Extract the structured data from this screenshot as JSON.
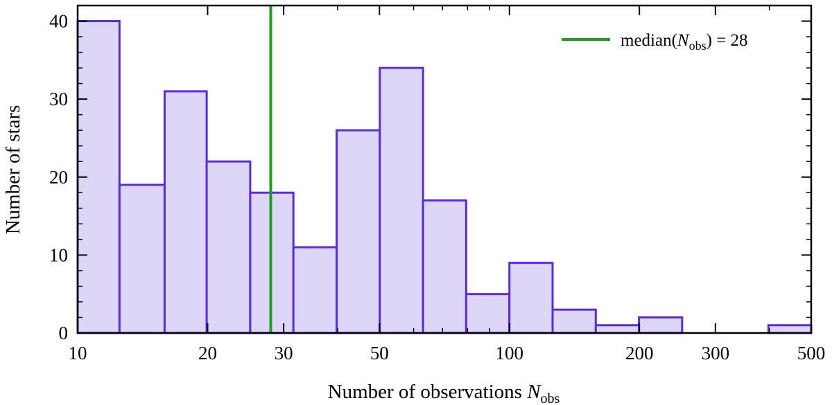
{
  "chart_data": {
    "type": "bar",
    "title": "",
    "xscale": "log",
    "xlim": [
      10,
      500
    ],
    "ylim": [
      0,
      42
    ],
    "xlabel": {
      "text": "Number of observations ",
      "var": "N",
      "sub": "obs"
    },
    "ylabel": "Number of stars",
    "x_ticks": [
      10,
      20,
      30,
      50,
      100,
      200,
      300,
      500
    ],
    "x_tick_labels": [
      "10",
      "20",
      "30",
      "50",
      "100",
      "200",
      "300",
      "500"
    ],
    "y_ticks": [
      0,
      10,
      20,
      30,
      40
    ],
    "y_tick_labels": [
      "0",
      "10",
      "20",
      "30",
      "40"
    ],
    "bin_edges": [
      10,
      12.5,
      15.9,
      19.9,
      25.1,
      31.6,
      39.8,
      50.1,
      63.1,
      79.4,
      100,
      125.9,
      158.5,
      199.5,
      251.2,
      316.2,
      398.1,
      500
    ],
    "counts": [
      40,
      19,
      31,
      22,
      18,
      11,
      26,
      34,
      17,
      5,
      9,
      3,
      1,
      2,
      0,
      0,
      1
    ],
    "bar_fill": "#ddd6f7",
    "bar_edge": "#5b2be0",
    "median": {
      "value": 28,
      "color": "#1aa31a"
    },
    "legend": {
      "placement": "top-right",
      "prefix": "median(",
      "var": "N",
      "sub": "obs",
      "suffix": ") = 28"
    }
  }
}
